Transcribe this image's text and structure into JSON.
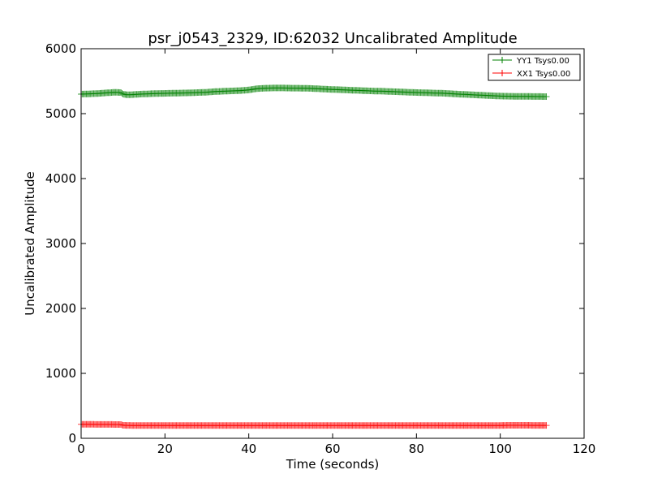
{
  "chart_data": {
    "type": "line",
    "title": "psr_j0543_2329, ID:62032 Uncalibrated Amplitude",
    "xlabel": "Time (seconds)",
    "ylabel": "Uncalibrated Amplitude",
    "xlim": [
      0,
      120
    ],
    "ylim": [
      0,
      6000
    ],
    "xticks": [
      0,
      20,
      40,
      60,
      80,
      100,
      120
    ],
    "yticks": [
      0,
      1000,
      2000,
      3000,
      4000,
      5000,
      6000
    ],
    "grid": false,
    "legend_placement": "top-right",
    "series": [
      {
        "name": "YY1 Tsys0.00",
        "color": "#008000",
        "marker": "+",
        "x": [
          0,
          2,
          4,
          6,
          8,
          9.5,
          10,
          11,
          12,
          14,
          16,
          18,
          20,
          22,
          24,
          26,
          28,
          30,
          32,
          34,
          36,
          38,
          40,
          42,
          44,
          46,
          48,
          50,
          52,
          54,
          56,
          58,
          60,
          62,
          64,
          66,
          68,
          70,
          72,
          74,
          76,
          78,
          80,
          82,
          84,
          86,
          88,
          90,
          92,
          94,
          96,
          98,
          100,
          102,
          104,
          106,
          108,
          110,
          111
        ],
        "y": [
          5300,
          5305,
          5310,
          5320,
          5328,
          5325,
          5300,
          5290,
          5292,
          5300,
          5305,
          5310,
          5312,
          5315,
          5318,
          5320,
          5325,
          5330,
          5340,
          5345,
          5350,
          5355,
          5365,
          5385,
          5392,
          5395,
          5395,
          5393,
          5392,
          5390,
          5385,
          5378,
          5372,
          5368,
          5362,
          5358,
          5352,
          5348,
          5345,
          5340,
          5335,
          5330,
          5325,
          5322,
          5318,
          5315,
          5308,
          5300,
          5295,
          5288,
          5282,
          5276,
          5270,
          5268,
          5266,
          5265,
          5264,
          5263,
          5263
        ]
      },
      {
        "name": "XX1 Tsys0.00",
        "color": "#ff0000",
        "marker": "+",
        "x": [
          0,
          2,
          4,
          6,
          8,
          9.5,
          10,
          12,
          15,
          20,
          25,
          30,
          35,
          40,
          45,
          50,
          55,
          60,
          65,
          70,
          75,
          80,
          85,
          90,
          95,
          100,
          102,
          104,
          106,
          108,
          110,
          111
        ],
        "y": [
          215,
          215,
          214,
          214,
          213,
          212,
          200,
          198,
          198,
          198,
          198,
          198,
          198,
          198,
          198,
          198,
          198,
          198,
          198,
          198,
          198,
          198,
          198,
          198,
          198,
          198,
          200,
          200,
          200,
          199,
          199,
          199
        ]
      }
    ]
  }
}
